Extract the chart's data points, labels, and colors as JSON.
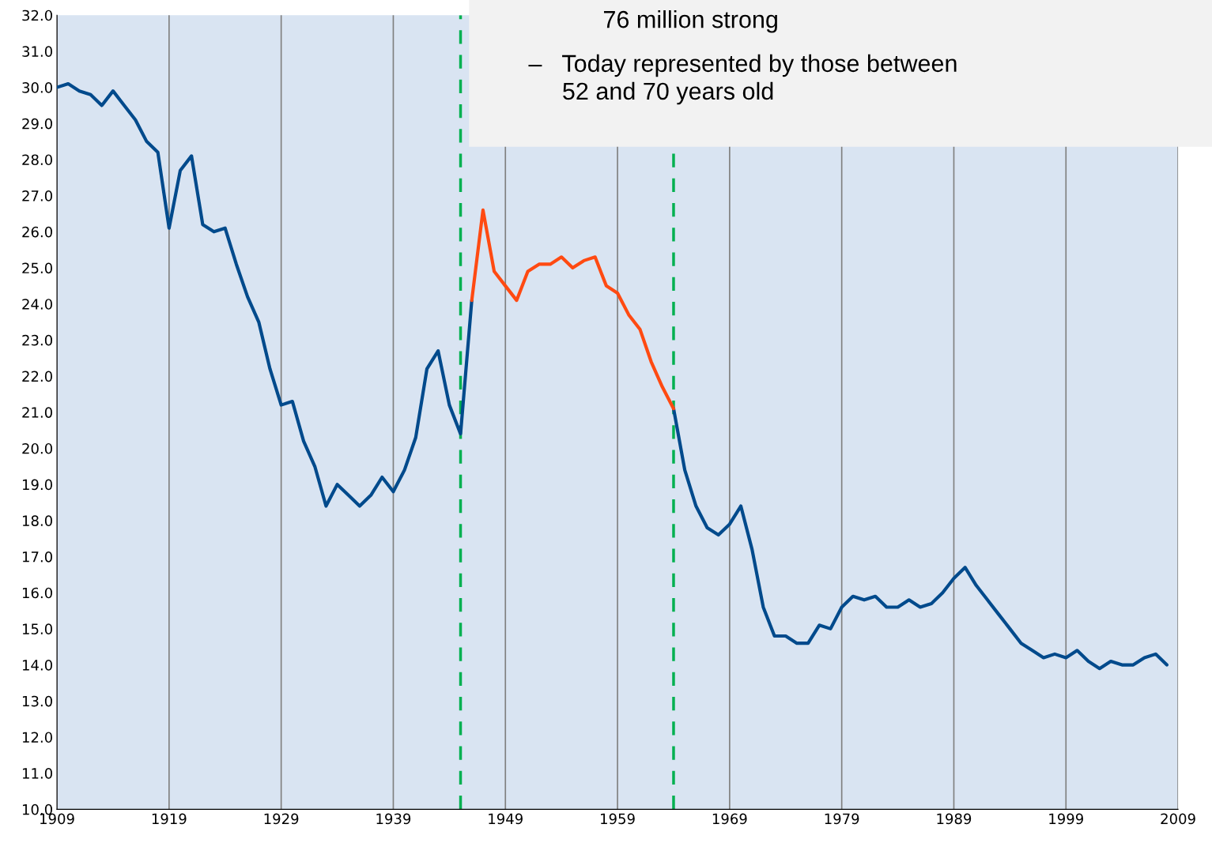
{
  "chart_data": {
    "type": "line",
    "x": [
      1909,
      1910,
      1911,
      1912,
      1913,
      1914,
      1915,
      1916,
      1917,
      1918,
      1919,
      1920,
      1921,
      1922,
      1923,
      1924,
      1925,
      1926,
      1927,
      1928,
      1929,
      1930,
      1931,
      1932,
      1933,
      1934,
      1935,
      1936,
      1937,
      1938,
      1939,
      1940,
      1941,
      1942,
      1943,
      1944,
      1945,
      1946,
      1947,
      1948,
      1949,
      1950,
      1951,
      1952,
      1953,
      1954,
      1955,
      1956,
      1957,
      1958,
      1959,
      1960,
      1961,
      1962,
      1963,
      1964,
      1965,
      1966,
      1967,
      1968,
      1969,
      1970,
      1971,
      1972,
      1973,
      1974,
      1975,
      1976,
      1977,
      1978,
      1979,
      1980,
      1981,
      1982,
      1983,
      1984,
      1985,
      1986,
      1987,
      1988,
      1989,
      1990,
      1991,
      1992,
      1993,
      1994,
      1995,
      1996,
      1997,
      1998,
      1999,
      2000,
      2001,
      2002,
      2003,
      2004,
      2005,
      2006,
      2007,
      2008
    ],
    "series": [
      {
        "color": "#004a8c",
        "values": [
          30.0,
          30.1,
          29.9,
          29.8,
          29.5,
          29.9,
          29.5,
          29.1,
          28.5,
          28.2,
          26.1,
          27.7,
          28.1,
          26.2,
          26.0,
          26.1,
          25.1,
          24.2,
          23.5,
          22.2,
          21.2,
          21.3,
          20.2,
          19.5,
          18.4,
          19.0,
          18.7,
          18.4,
          18.7,
          19.2,
          18.8,
          19.4,
          20.3,
          22.2,
          22.7,
          21.2,
          20.4,
          24.1,
          null,
          null,
          null,
          null,
          null,
          null,
          null,
          null,
          null,
          null,
          null,
          null,
          null,
          null,
          null,
          null,
          null,
          21.1,
          19.4,
          18.4,
          17.8,
          17.6,
          17.9,
          18.4,
          17.2,
          15.6,
          14.8,
          14.8,
          14.6,
          14.6,
          15.1,
          15.0,
          15.6,
          15.9,
          15.8,
          15.9,
          15.6,
          15.6,
          15.8,
          15.6,
          15.7,
          16.0,
          16.4,
          16.7,
          16.2,
          15.8,
          15.4,
          15.0,
          14.6,
          14.4,
          14.2,
          14.3,
          14.2,
          14.4,
          14.1,
          13.9,
          14.1,
          14.0,
          14.0,
          14.2,
          14.3,
          14.0
        ]
      },
      {
        "color": "#ff4a12",
        "x": [
          1946,
          1947,
          1948,
          1949,
          1950,
          1951,
          1952,
          1953,
          1954,
          1955,
          1956,
          1957,
          1958,
          1959,
          1960,
          1961,
          1962,
          1963,
          1964
        ],
        "values": [
          24.1,
          26.6,
          24.9,
          24.5,
          24.1,
          24.9,
          25.1,
          25.1,
          25.3,
          25.0,
          25.2,
          25.3,
          24.5,
          24.3,
          23.7,
          23.3,
          22.4,
          21.7,
          21.1
        ]
      }
    ],
    "xlim": [
      1909,
      2009
    ],
    "xticks": [
      1909,
      1919,
      1929,
      1939,
      1949,
      1959,
      1969,
      1979,
      1989,
      1999,
      2009
    ],
    "ylim": [
      10,
      32
    ],
    "yticks": [
      {
        "value": 10,
        "label": "10.0"
      },
      {
        "value": 11,
        "label": "11.0"
      },
      {
        "value": 12,
        "label": "12.0"
      },
      {
        "value": 13,
        "label": "13.0"
      },
      {
        "value": 14,
        "label": "14.0"
      },
      {
        "value": 15,
        "label": "15.0"
      },
      {
        "value": 16,
        "label": "16.0"
      },
      {
        "value": 17,
        "label": "17.0"
      },
      {
        "value": 18,
        "label": "18.0"
      },
      {
        "value": 19,
        "label": "19.0"
      },
      {
        "value": 20,
        "label": "20.0"
      },
      {
        "value": 21,
        "label": "21.0"
      },
      {
        "value": 22,
        "label": "22.0"
      },
      {
        "value": 23,
        "label": "23.0"
      },
      {
        "value": 24,
        "label": "24.0"
      },
      {
        "value": 25,
        "label": "25.0"
      },
      {
        "value": 26,
        "label": "26.0"
      },
      {
        "value": 27,
        "label": "27.0"
      },
      {
        "value": 28,
        "label": "28.0"
      },
      {
        "value": 29,
        "label": "29.0"
      },
      {
        "value": 30,
        "label": "30.0"
      },
      {
        "value": 31,
        "label": "31.0"
      },
      {
        "value": 32,
        "label": "32.0"
      }
    ],
    "ref_lines": [
      {
        "axis": "x",
        "value": 1945,
        "color": "#00b050",
        "line_style": "dashed"
      },
      {
        "axis": "x",
        "value": 1964,
        "color": "#00b050",
        "line_style": "dashed"
      }
    ],
    "grid": "x",
    "line_style": "solid",
    "marker": "none",
    "annotations": [
      "76 million strong",
      "–   Today represented by those between\n     52 and 70 years old"
    ]
  }
}
